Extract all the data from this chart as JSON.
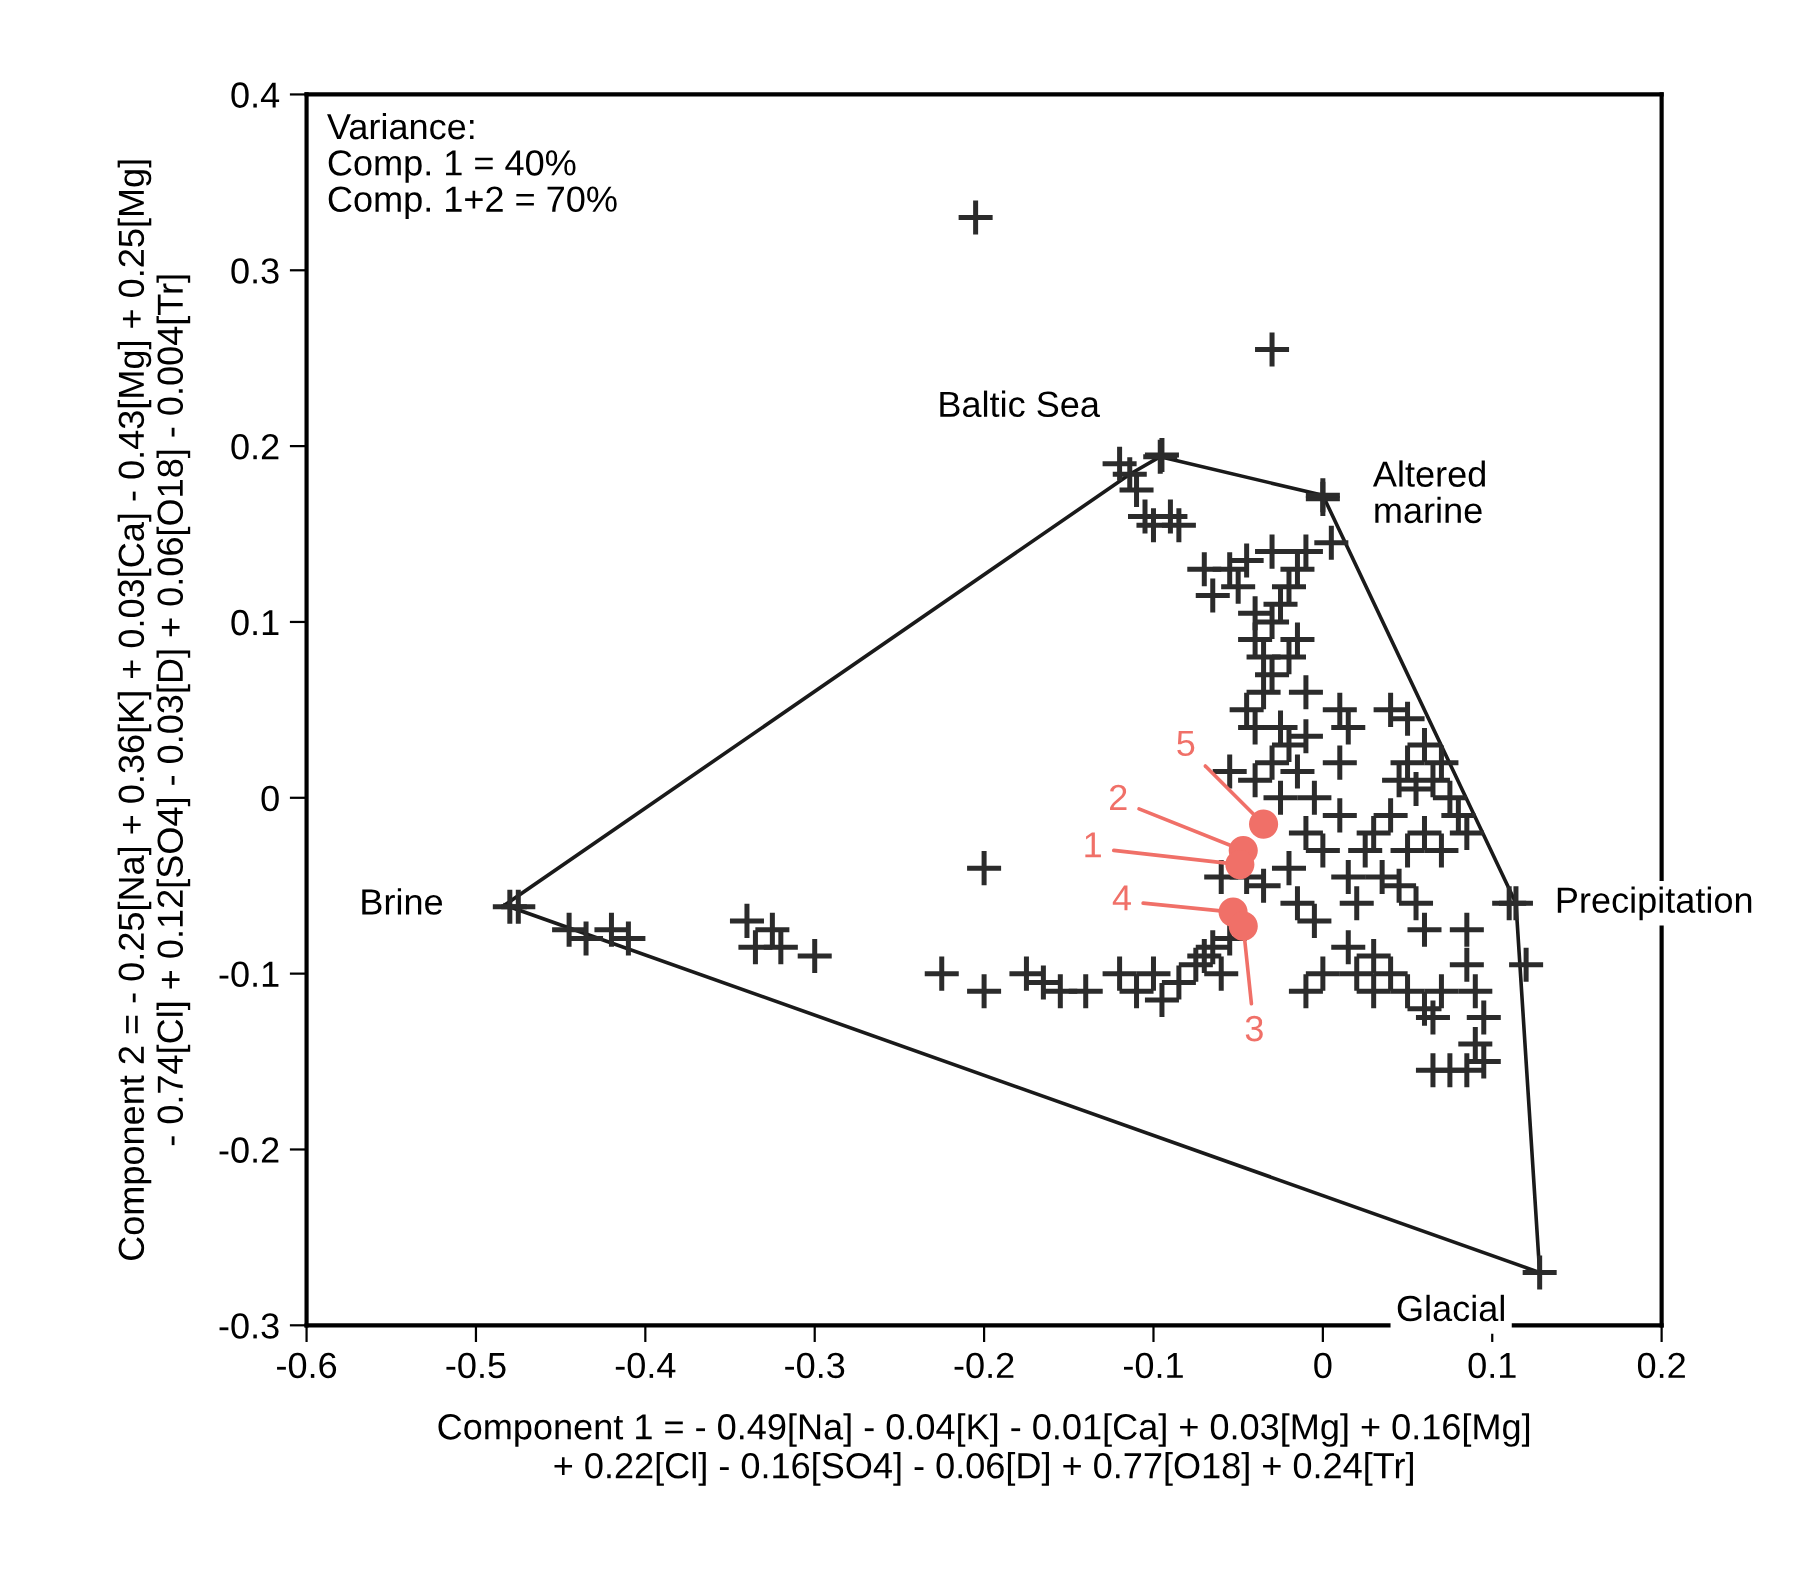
{
  "chart_data": {
    "type": "scatter",
    "xlabel": "Component 1 = - 0.49[Na] - 0.04[K] - 0.01[Ca] + 0.03[Mg] + 0.16[Mg]\n+ 0.22[Cl] - 0.16[SO4] - 0.06[D] + 0.77[O18] + 0.24[Tr]",
    "ylabel": "Component 2 = - 0.25[Na] + 0.36[K] + 0.03[Ca] - 0.43[Mg] + 0.25[Mg]\n- 0.74[Cl] + 0.12[SO4] - 0.03[D] + 0.06[O18] - 0.004[Tr]",
    "xlim": [
      -0.6,
      0.2
    ],
    "ylim": [
      -0.3,
      0.4
    ],
    "xticks": [
      -0.6,
      -0.5,
      -0.4,
      -0.3,
      -0.2,
      -0.1,
      0,
      0.1,
      0.2
    ],
    "yticks": [
      -0.3,
      -0.2,
      -0.1,
      0,
      0.1,
      0.2,
      0.3,
      0.4
    ],
    "grid": false,
    "legend": false,
    "series": [
      {
        "type": "line",
        "color": "#1a1a1a",
        "marker": "none",
        "line_style": "solid",
        "x": [
          -0.483,
          -0.114,
          -0.096,
          0.0,
          0.114,
          0.128
        ],
        "values": [
          -0.061,
          0.184,
          0.194,
          0.172,
          -0.06,
          -0.27
        ]
      },
      {
        "type": "line",
        "color": "#1a1a1a",
        "marker": "none",
        "line_style": "solid",
        "x": [
          -0.483,
          0.128
        ],
        "values": [
          -0.061,
          -0.27
        ]
      },
      {
        "color": "#2b2b2b",
        "marker": "cross",
        "x": [
          -0.205,
          -0.03,
          -0.2,
          -0.48,
          -0.475,
          -0.445,
          -0.435,
          -0.42,
          -0.41,
          -0.34,
          -0.335,
          -0.325,
          -0.32,
          -0.3,
          -0.225,
          -0.2,
          -0.175,
          -0.165,
          -0.155,
          -0.14,
          -0.12,
          -0.11,
          -0.1,
          -0.095,
          -0.085,
          -0.075,
          -0.07,
          -0.065,
          -0.06,
          -0.055,
          -0.12,
          -0.11,
          -0.105,
          -0.1,
          -0.095,
          -0.09,
          -0.085,
          -0.07,
          -0.055,
          -0.045,
          -0.05,
          -0.065,
          -0.04,
          -0.03,
          -0.025,
          -0.02,
          -0.015,
          0.0,
          0.005,
          -0.03,
          -0.01,
          -0.04,
          -0.035,
          -0.03,
          -0.02,
          -0.015,
          -0.01,
          -0.035,
          -0.045,
          -0.04,
          -0.025,
          -0.02,
          -0.01,
          0.01,
          0.015,
          0.01,
          -0.03,
          -0.015,
          -0.005,
          -0.025,
          -0.04,
          -0.055,
          -0.045,
          -0.035,
          -0.02,
          -0.01,
          0.0,
          0.01,
          0.015,
          0.02,
          0.025,
          -0.06,
          -0.015,
          0.04,
          0.05,
          0.06,
          0.07,
          0.05,
          0.045,
          0.055,
          0.065,
          0.075,
          0.08,
          0.085,
          0.07,
          0.06,
          0.05,
          0.04,
          0.03,
          0.045,
          0.055,
          0.06,
          0.035,
          0.03,
          0.04,
          0.02,
          0.0,
          0.015,
          -0.01,
          -0.005,
          0.03,
          0.05,
          0.06,
          0.065,
          0.07,
          0.085,
          0.085,
          0.09,
          0.095,
          0.065,
          0.075,
          0.085,
          0.095,
          0.09,
          0.12,
          0.11,
          0.128,
          0.114,
          0.0,
          -0.096,
          -0.114
        ],
        "values": [
          0.33,
          0.255,
          -0.04,
          -0.062,
          -0.062,
          -0.075,
          -0.08,
          -0.075,
          -0.08,
          -0.07,
          -0.085,
          -0.075,
          -0.085,
          -0.09,
          -0.1,
          -0.11,
          -0.1,
          -0.105,
          -0.11,
          -0.11,
          -0.1,
          -0.11,
          -0.1,
          -0.115,
          -0.105,
          -0.095,
          -0.09,
          -0.085,
          -0.1,
          -0.08,
          0.19,
          0.175,
          0.16,
          0.155,
          0.195,
          0.16,
          0.155,
          0.13,
          0.13,
          0.135,
          0.12,
          0.115,
          0.105,
          0.1,
          0.11,
          0.12,
          0.13,
          0.17,
          0.145,
          0.14,
          0.14,
          0.09,
          0.08,
          0.07,
          0.08,
          0.09,
          0.06,
          0.06,
          0.05,
          0.04,
          0.04,
          0.03,
          0.035,
          0.05,
          0.04,
          0.02,
          0.02,
          0.015,
          0.0,
          0.0,
          0.01,
          0.015,
          -0.045,
          -0.05,
          -0.04,
          -0.02,
          -0.03,
          -0.01,
          -0.045,
          -0.06,
          -0.03,
          -0.045,
          -0.06,
          0.05,
          0.045,
          0.03,
          0.02,
          0.02,
          0.01,
          0.005,
          0.01,
          0.0,
          -0.01,
          -0.02,
          -0.03,
          -0.02,
          -0.03,
          -0.01,
          -0.02,
          -0.05,
          -0.06,
          -0.075,
          -0.045,
          -0.09,
          -0.1,
          -0.1,
          -0.1,
          -0.085,
          -0.11,
          -0.07,
          -0.11,
          -0.11,
          -0.12,
          -0.125,
          -0.11,
          -0.075,
          -0.095,
          -0.11,
          -0.125,
          -0.155,
          -0.155,
          -0.155,
          -0.15,
          -0.14,
          -0.095,
          -0.06,
          -0.27,
          -0.06,
          0.172,
          0.194,
          0.184
        ]
      },
      {
        "color": "#f07068",
        "marker": "circle",
        "x": [
          -0.035,
          -0.047,
          -0.049,
          -0.053,
          -0.047
        ],
        "values": [
          -0.015,
          -0.03,
          -0.038,
          -0.065,
          -0.073
        ]
      }
    ],
    "annotations": [
      "Variance:\nComp. 1 = 40%\nComp. 1+2 = 70%",
      {
        "text": "Baltic Sea",
        "x": -0.114,
        "y": 0.184
      },
      {
        "text": "Altered\nmarine",
        "x": 0.0,
        "y": 0.172
      },
      {
        "text": "Brine",
        "x": -0.483,
        "y": -0.061
      },
      {
        "text": "Precipitation",
        "x": 0.114,
        "y": -0.06
      },
      {
        "text": "Glacial",
        "x": 0.128,
        "y": -0.27
      },
      {
        "text": "5",
        "x": -0.035,
        "y": -0.015
      },
      {
        "text": "2",
        "x": -0.047,
        "y": -0.03
      },
      {
        "text": "1",
        "x": -0.049,
        "y": -0.038
      },
      {
        "text": "4",
        "x": -0.053,
        "y": -0.065
      },
      {
        "text": "3",
        "x": -0.047,
        "y": -0.073
      }
    ]
  }
}
